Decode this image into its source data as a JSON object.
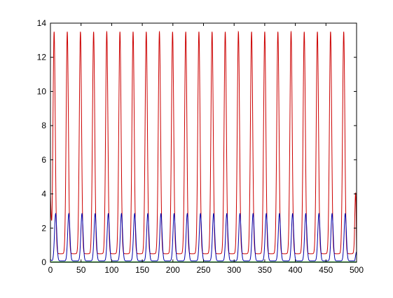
{
  "chart_data": {
    "type": "line",
    "title": "",
    "xlabel": "",
    "ylabel": "",
    "xlim": [
      0,
      500
    ],
    "ylim": [
      0,
      14
    ],
    "grid": false,
    "legend": "none",
    "x_ticks": [
      {
        "value": 0,
        "label": "0"
      },
      {
        "value": 50,
        "label": "50"
      },
      {
        "value": 100,
        "label": "100"
      },
      {
        "value": 150,
        "label": "150"
      },
      {
        "value": 200,
        "label": "200"
      },
      {
        "value": 250,
        "label": "250"
      },
      {
        "value": 300,
        "label": "300"
      },
      {
        "value": 350,
        "label": "350"
      },
      {
        "value": 400,
        "label": "400"
      },
      {
        "value": 450,
        "label": "450"
      },
      {
        "value": 500,
        "label": "500"
      }
    ],
    "y_ticks": [
      {
        "value": 0,
        "label": "0"
      },
      {
        "value": 2,
        "label": "2"
      },
      {
        "value": 4,
        "label": "4"
      },
      {
        "value": 6,
        "label": "6"
      },
      {
        "value": 8,
        "label": "8"
      },
      {
        "value": 10,
        "label": "10"
      },
      {
        "value": 12,
        "label": "12"
      },
      {
        "value": 14,
        "label": "14"
      }
    ],
    "series": [
      {
        "color": "#cc0000",
        "period": 21.5,
        "phase": 6,
        "min": 0.5,
        "max": 13.5,
        "start_value": 4.0,
        "end_value": 0.5
      },
      {
        "color": "#0000aa",
        "period": 21.5,
        "phase": 8.5,
        "min": 0.08,
        "max": 2.85,
        "start_value": 0.15,
        "end_value": 0.6
      },
      {
        "color": "#00aa00",
        "constant": 0.02
      }
    ]
  }
}
